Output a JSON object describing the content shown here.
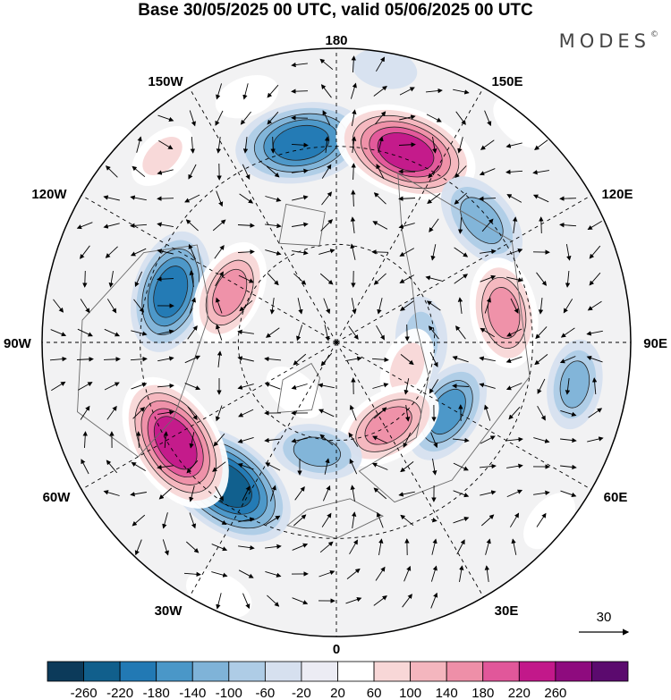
{
  "title": "Base 30/05/2025 00 UTC, valid 05/06/2025 00 UTC",
  "logo": "MODES",
  "logo_mark": "©",
  "longitude_labels": {
    "top": "180",
    "bottom": "0",
    "left": "90W",
    "right": "90E",
    "upper_left": "150W",
    "upper_right": "150E",
    "mid_left": "120W",
    "mid_right": "120E",
    "lower_left": "60W",
    "lower_right": "60E",
    "bottom_left": "30W",
    "bottom_right": "30E"
  },
  "reference_vector": {
    "value": "30"
  },
  "colorbar": {
    "ticks": [
      "-260",
      "-220",
      "-180",
      "-140",
      "-100",
      "-60",
      "-20",
      "20",
      "60",
      "100",
      "140",
      "180",
      "220",
      "260"
    ],
    "colors": [
      "#0c3a5a",
      "#115f8c",
      "#2279b4",
      "#4a97c8",
      "#7fb3d8",
      "#aeccE6",
      "#d6e0ef",
      "#ececf4",
      "#ffffff",
      "#f8d7d7",
      "#f4b6be",
      "#ee8fa8",
      "#e1579a",
      "#c2188a",
      "#8e0b7e",
      "#5b0a6e"
    ]
  },
  "anomaly_centres": [
    {
      "sign": "neg",
      "lon": -170,
      "colat": 62,
      "value": -200
    },
    {
      "sign": "pos",
      "lon": 160,
      "colat": 62,
      "value": 230
    },
    {
      "sign": "neg",
      "lon": 130,
      "colat": 58,
      "value": -130
    },
    {
      "sign": "pos",
      "lon": 100,
      "colat": 52,
      "value": 150
    },
    {
      "sign": "neg",
      "lon": 92,
      "colat": 26,
      "value": -90
    },
    {
      "sign": "pos",
      "lon": 70,
      "colat": 23,
      "value": 80
    },
    {
      "sign": "neg",
      "lon": 58,
      "colat": 40,
      "value": -140
    },
    {
      "sign": "pos",
      "lon": 32,
      "colat": 30,
      "value": 150
    },
    {
      "sign": "neg",
      "lon": 80,
      "colat": 74,
      "value": -100
    },
    {
      "sign": "neg",
      "lon": -10,
      "colat": 34,
      "value": -100
    },
    {
      "sign": "neg",
      "lon": -38,
      "colat": 55,
      "value": -240
    },
    {
      "sign": "pos",
      "lon": -58,
      "colat": 58,
      "value": 230
    },
    {
      "sign": "neg",
      "lon": -107,
      "colat": 53,
      "value": -180
    },
    {
      "sign": "pos",
      "lon": -115,
      "colat": 36,
      "value": 140
    },
    {
      "sign": "pos",
      "lon": -137,
      "colat": 78,
      "value": 60
    },
    {
      "sign": "pos",
      "lon": -40,
      "colat": 20,
      "value": 40
    },
    {
      "sign": "pos",
      "lon": -160,
      "colat": 80,
      "value": 40
    },
    {
      "sign": "pos",
      "lon": -25,
      "colat": 85,
      "value": 50
    },
    {
      "sign": "pos",
      "lon": 50,
      "colat": 85,
      "value": 40
    },
    {
      "sign": "pos",
      "lon": 140,
      "colat": 88,
      "value": 40
    },
    {
      "sign": "neg",
      "lon": 170,
      "colat": 85,
      "value": -40
    }
  ]
}
